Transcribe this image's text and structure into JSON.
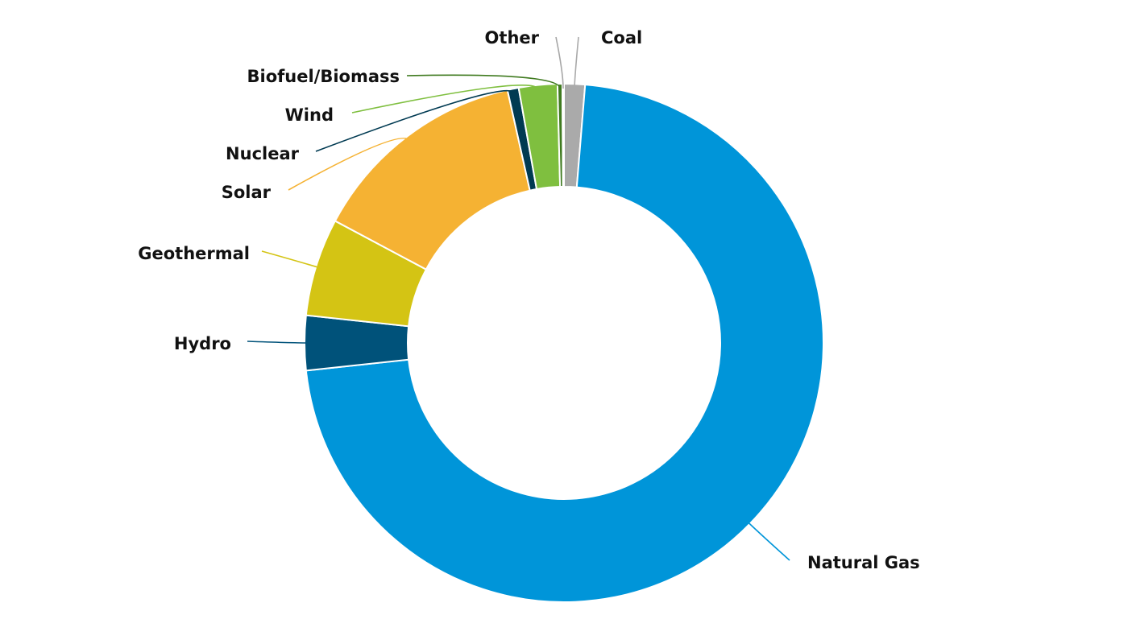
{
  "chart_data": {
    "type": "donut",
    "categories": [
      "Coal",
      "Natural Gas",
      "Hydro",
      "Geothermal",
      "Solar",
      "Nuclear",
      "Wind",
      "Biofuel/Biomass",
      "Other"
    ],
    "values": [
      1.3,
      72.0,
      3.4,
      6.1,
      13.7,
      0.7,
      2.4,
      0.3,
      0.1
    ],
    "colors": [
      "#aaaaaa",
      "#0095d9",
      "#00527a",
      "#d4c414",
      "#f5b233",
      "#003a52",
      "#7fbf3f",
      "#3f7a1f",
      "#a6a6a6"
    ]
  }
}
